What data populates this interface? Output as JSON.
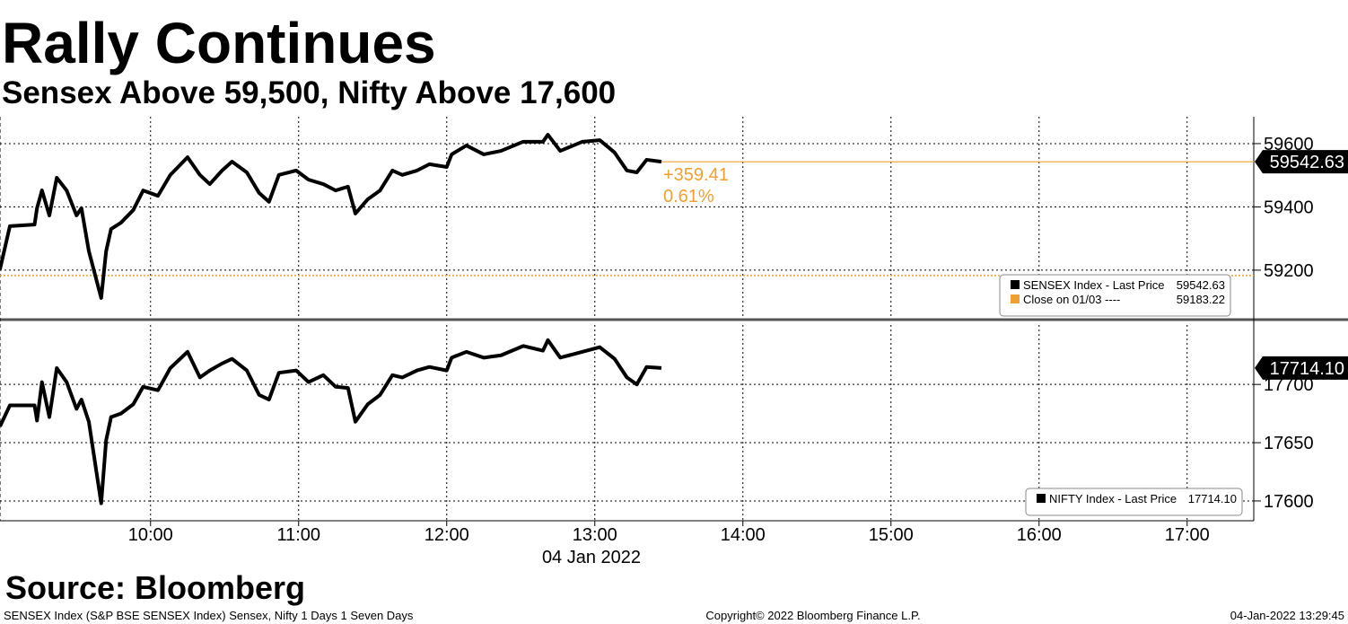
{
  "header": {
    "title": "Rally Continues",
    "subtitle": "Sensex Above 59,500, Nifty Above 17,600"
  },
  "chart_data": [
    {
      "type": "line",
      "x": [
        "08:59",
        "09:03",
        "09:13",
        "09:14",
        "09:16",
        "09:19",
        "09:22",
        "09:26",
        "09:30",
        "09:32",
        "09:35",
        "09:40",
        "09:42",
        "09:44",
        "09:48",
        "09:53",
        "09:57",
        "10:03",
        "10:08",
        "10:15",
        "10:20",
        "10:24",
        "10:29",
        "10:33",
        "10:39",
        "10:44",
        "10:48",
        "10:52",
        "10:59",
        "11:04",
        "11:10",
        "11:15",
        "11:20",
        "11:23",
        "11:28",
        "11:33",
        "11:38",
        "11:42",
        "11:48",
        "11:53",
        "12:00",
        "12:02",
        "12:08",
        "12:15",
        "12:22",
        "12:31",
        "12:39",
        "12:41",
        "12:46",
        "12:55",
        "13:02",
        "13:08",
        "13:13",
        "13:17",
        "13:21",
        "13:27"
      ],
      "series": [
        {
          "name": "SENSEX Index - Last Price",
          "color": "#000000",
          "last_label": "59542.63",
          "values": [
            59203,
            59339,
            59344,
            59396,
            59452,
            59373,
            59492,
            59452,
            59373,
            59396,
            59260,
            59112,
            59260,
            59330,
            59350,
            59390,
            59452,
            59435,
            59501,
            59557,
            59501,
            59472,
            59515,
            59543,
            59509,
            59444,
            59416,
            59501,
            59515,
            59486,
            59472,
            59452,
            59464,
            59379,
            59424,
            59452,
            59515,
            59501,
            59515,
            59535,
            59526,
            59566,
            59594,
            59566,
            59577,
            59606,
            59606,
            59628,
            59577,
            59606,
            59611,
            59572,
            59515,
            59509,
            59549,
            59542.63
          ]
        }
      ],
      "reference_lines": [
        {
          "name": "Close on 01/03 ----",
          "value": 59183.22,
          "color": "#f0a030"
        }
      ],
      "annotations": [
        "+359.41",
        "0.61%"
      ],
      "annotation_color": "#f0a030",
      "xlim": [
        "08:59",
        "17:27"
      ],
      "xticks": [
        "10:00",
        "11:00",
        "12:00",
        "13:00",
        "14:00",
        "15:00",
        "16:00",
        "17:00"
      ],
      "ylim": [
        59055,
        59685
      ],
      "yticks": [
        59200,
        59400,
        59600
      ],
      "grid": true,
      "legend": "bottom-right"
    },
    {
      "type": "line",
      "x": [
        "08:59",
        "09:03",
        "09:13",
        "09:14",
        "09:16",
        "09:19",
        "09:22",
        "09:26",
        "09:30",
        "09:32",
        "09:35",
        "09:40",
        "09:42",
        "09:44",
        "09:48",
        "09:53",
        "09:57",
        "10:03",
        "10:08",
        "10:15",
        "10:20",
        "10:24",
        "10:29",
        "10:33",
        "10:39",
        "10:44",
        "10:48",
        "10:52",
        "10:59",
        "11:04",
        "11:10",
        "11:15",
        "11:20",
        "11:23",
        "11:28",
        "11:33",
        "11:38",
        "11:42",
        "11:48",
        "11:53",
        "12:00",
        "12:02",
        "12:08",
        "12:15",
        "12:22",
        "12:31",
        "12:39",
        "12:41",
        "12:46",
        "12:55",
        "13:02",
        "13:08",
        "13:13",
        "13:17",
        "13:21",
        "13:27"
      ],
      "series": [
        {
          "name": "NIFTY Index - Last Price",
          "color": "#000000",
          "last_label": "17714.10",
          "values": [
            17664,
            17682,
            17682,
            17669,
            17702,
            17672,
            17714,
            17702,
            17679,
            17687,
            17668,
            17598,
            17652,
            17672,
            17675,
            17683,
            17698,
            17695,
            17714,
            17728,
            17706,
            17712,
            17718,
            17722,
            17712,
            17691,
            17687,
            17710,
            17712,
            17702,
            17708,
            17698,
            17697,
            17668,
            17683,
            17691,
            17708,
            17706,
            17712,
            17715,
            17712,
            17723,
            17728,
            17723,
            17725,
            17733,
            17729,
            17738,
            17723,
            17728,
            17732,
            17722,
            17706,
            17700,
            17715,
            17714.1
          ]
        }
      ],
      "xlim": [
        "08:59",
        "17:27"
      ],
      "xticks": [
        "10:00",
        "11:00",
        "12:00",
        "13:00",
        "14:00",
        "15:00",
        "16:00",
        "17:00"
      ],
      "xlabel": "04 Jan 2022",
      "ylim": [
        17583,
        17751
      ],
      "yticks": [
        17600,
        17650,
        17700
      ],
      "grid": true,
      "legend": "bottom-right"
    }
  ],
  "footer": {
    "source": "Source: Bloomberg",
    "description": "SENSEX Index (S&P BSE SENSEX Index) Sensex, Nifty 1 Days 1 Seven Days",
    "copyright": "Copyright© 2022 Bloomberg Finance L.P.",
    "timestamp": "04-Jan-2022 13:29:45"
  }
}
